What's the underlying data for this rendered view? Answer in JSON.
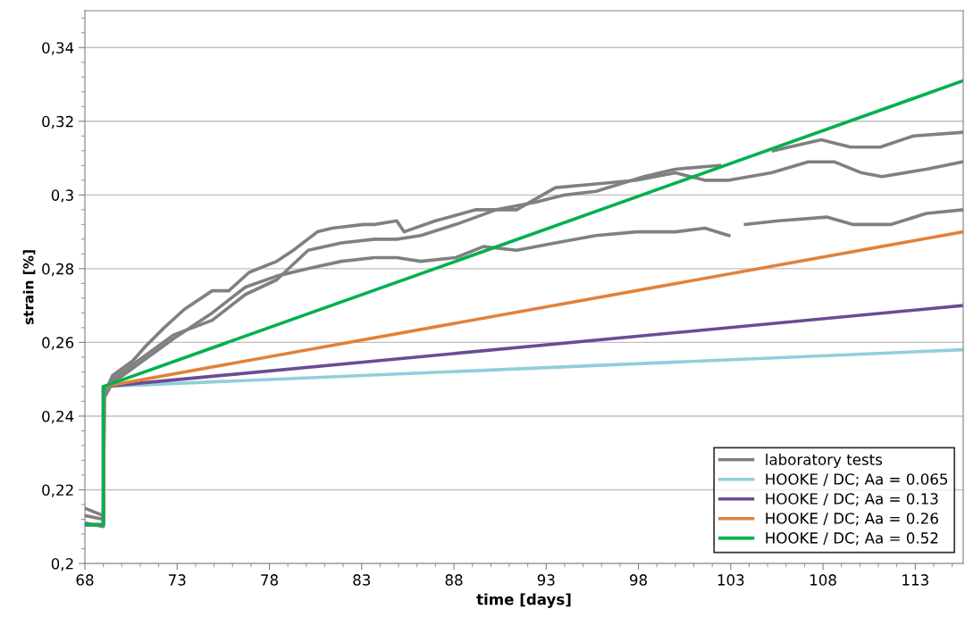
{
  "chart_data": {
    "type": "line",
    "xlabel": "time [days]",
    "ylabel": "strain [%]",
    "xlim": [
      68,
      115.6
    ],
    "xticks": [
      68,
      73,
      78,
      83,
      88,
      93,
      98,
      103,
      108,
      113
    ],
    "ylim": [
      0.2,
      0.35
    ],
    "yticks": [
      {
        "value": 0.2,
        "label": "0,2"
      },
      {
        "value": 0.22,
        "label": "0,22"
      },
      {
        "value": 0.24,
        "label": "0,24"
      },
      {
        "value": 0.26,
        "label": "0,26"
      },
      {
        "value": 0.28,
        "label": "0,28"
      },
      {
        "value": 0.3,
        "label": "0,3"
      },
      {
        "value": 0.32,
        "label": "0,32"
      },
      {
        "value": 0.34,
        "label": "0,34"
      }
    ],
    "grid": "y",
    "legend": "bottom right",
    "marker": "none",
    "line_style": "solid",
    "series": [
      {
        "name": "laboratory tests",
        "color": "#808080",
        "x": [
          68,
          69,
          69.05,
          69.5,
          70.6,
          71.3,
          72.3,
          73.4,
          74.9,
          75.8,
          76.9,
          78.4,
          79.3,
          80.6,
          81.4,
          83.1,
          83.7,
          84.9,
          85.3,
          87.0,
          89.2,
          91.4,
          93.5,
          95.7,
          97.9,
          100.0,
          101.6,
          102.9,
          105.2,
          107.2,
          108.6,
          110.1,
          111.2,
          113.6,
          115.6
        ],
        "values": [
          0.213,
          0.212,
          0.246,
          0.251,
          0.255,
          0.259,
          0.264,
          0.269,
          0.274,
          0.274,
          0.279,
          0.282,
          0.285,
          0.29,
          0.291,
          0.292,
          0.292,
          0.293,
          0.29,
          0.293,
          0.296,
          0.296,
          0.302,
          0.303,
          0.304,
          0.306,
          0.304,
          0.304,
          0.306,
          0.309,
          0.309,
          0.306,
          0.305,
          0.307,
          0.309
        ]
      },
      {
        "color": "#808080",
        "x": [
          68,
          69,
          69.05,
          69.5,
          70.6,
          72.8,
          74.9,
          76.7,
          78.4,
          80.1,
          81.9,
          83.7,
          84.9,
          86.2,
          88.1,
          90.3,
          92.4,
          94.0,
          95.7,
          98.3,
          100.0,
          102.4,
          104.0,
          105.3,
          107.9,
          109.5,
          111.1,
          112.9,
          115.6
        ],
        "values": [
          0.215,
          0.213,
          0.246,
          0.25,
          0.254,
          0.262,
          0.266,
          0.273,
          0.277,
          0.285,
          0.287,
          0.288,
          0.288,
          0.289,
          0.292,
          0.296,
          0.298,
          0.3,
          0.301,
          0.305,
          0.307,
          0.308,
          null,
          0.312,
          0.315,
          0.313,
          0.313,
          0.316,
          0.317
        ]
      },
      {
        "color": "#808080",
        "x": [
          68,
          69,
          69.05,
          69.5,
          70.6,
          72.8,
          74.9,
          76.7,
          78.4,
          80.1,
          81.9,
          83.7,
          84.9,
          86.2,
          88.1,
          89.6,
          91.4,
          93.5,
          95.7,
          97.9,
          100.0,
          101.6,
          102.9,
          103.5,
          103.8,
          105.6,
          108.2,
          109.6,
          111.7,
          113.6,
          115.6
        ],
        "values": [
          0.211,
          0.21,
          0.245,
          0.249,
          0.253,
          0.261,
          0.268,
          0.275,
          0.278,
          0.28,
          0.282,
          0.283,
          0.283,
          0.282,
          0.283,
          0.286,
          0.285,
          0.287,
          0.289,
          0.29,
          0.29,
          0.291,
          0.289,
          null,
          0.292,
          0.293,
          0.294,
          0.292,
          0.292,
          0.295,
          0.296
        ]
      },
      {
        "name": "HOOKE / DC; Aa = 0.065",
        "color": "#92cddc",
        "x": [
          68,
          69,
          69,
          115.6
        ],
        "values": [
          0.2105,
          0.2105,
          0.248,
          0.258
        ]
      },
      {
        "name": "HOOKE / DC; Aa = 0.13",
        "color": "#6a4c93",
        "x": [
          68,
          69,
          69,
          115.6
        ],
        "values": [
          0.2105,
          0.2105,
          0.248,
          0.27
        ]
      },
      {
        "name": "HOOKE / DC; Aa = 0.26",
        "color": "#e0823a",
        "x": [
          68,
          69,
          69,
          115.6
        ],
        "values": [
          0.2105,
          0.2105,
          0.248,
          0.29
        ]
      },
      {
        "name": "HOOKE / DC; Aa = 0.52",
        "color": "#00b050",
        "x": [
          68,
          69,
          69,
          115.6
        ],
        "values": [
          0.2105,
          0.2105,
          0.248,
          0.331
        ]
      }
    ]
  }
}
